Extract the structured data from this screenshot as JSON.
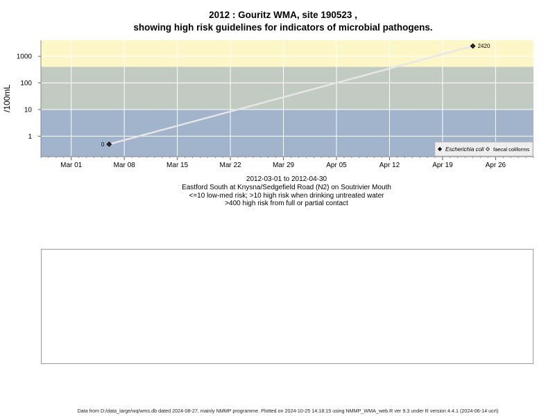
{
  "title_line1": "2012 : Gouritz WMA, site 190523 ,",
  "title_line2": "showing high risk guidelines for indicators of microbial pathogens.",
  "subtitle": {
    "date_range": "2012-03-01 to 2012-04-30",
    "site_description": "Eastford South at Knysna/Sedgefield Road (N2) on Soutrivier Mouth",
    "guideline_1": "<=10 low-med risk; >10 high risk when drinking untreated water",
    "guideline_2": ">400 high risk from full or partial contact"
  },
  "footer": "Data from D:/data_large/wq/wms.db dated 2024-08-27, mainly NMMP programme. Plotted on 2024-10-25 14:18:15 using NMMP_WMA_web.R ver 9.3 under R version 4.4.1 (2024-06-14 ucrt)",
  "chart_data": {
    "type": "line",
    "ylabel": "/100mL",
    "y_scale": "log10",
    "ylim": [
      0.17,
      4000
    ],
    "xlim": [
      "2012-02-26",
      "2012-05-01"
    ],
    "x_ticks": [
      {
        "date": "2012-03-01",
        "label": "Mar 01"
      },
      {
        "date": "2012-03-08",
        "label": "Mar 08"
      },
      {
        "date": "2012-03-15",
        "label": "Mar 15"
      },
      {
        "date": "2012-03-22",
        "label": "Mar 22"
      },
      {
        "date": "2012-03-29",
        "label": "Mar 29"
      },
      {
        "date": "2012-04-05",
        "label": "Apr 05"
      },
      {
        "date": "2012-04-12",
        "label": "Apr 12"
      },
      {
        "date": "2012-04-19",
        "label": "Apr 19"
      },
      {
        "date": "2012-04-26",
        "label": "Apr 26"
      }
    ],
    "y_ticks": [
      {
        "value": 1,
        "label": "1"
      },
      {
        "value": 10,
        "label": "10"
      },
      {
        "value": 100,
        "label": "100"
      },
      {
        "value": 1000,
        "label": "1000"
      }
    ],
    "risk_bands": [
      {
        "from": 400,
        "to": 4000,
        "color": "#fdf7c8"
      },
      {
        "from": 10,
        "to": 400,
        "color": "#c2cbc2"
      },
      {
        "from": 0.17,
        "to": 10,
        "color": "#a2b3cc"
      }
    ],
    "grid": true,
    "series": [
      {
        "name": "Escherichia coli",
        "marker": "filled-diamond",
        "color": "#333333",
        "line_color": "#e6e6e6",
        "points": [
          {
            "x": "2012-03-06",
            "y": 0.5,
            "label": "0"
          },
          {
            "x": "2012-04-23",
            "y": 2420,
            "label": "2420"
          }
        ]
      }
    ],
    "legend": {
      "placement": "bottom-right",
      "entries": [
        {
          "label": "Escherichia coli",
          "marker": "filled-diamond",
          "italic": true
        },
        {
          "label": "faecal coliforms",
          "marker": "open-diamond",
          "italic": false
        }
      ]
    }
  }
}
